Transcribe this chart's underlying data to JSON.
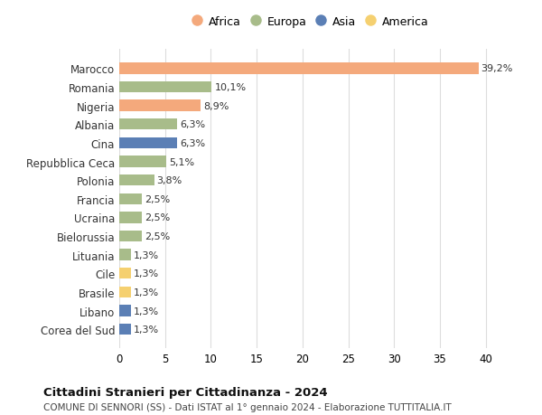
{
  "countries": [
    "Marocco",
    "Romania",
    "Nigeria",
    "Albania",
    "Cina",
    "Repubblica Ceca",
    "Polonia",
    "Francia",
    "Ucraina",
    "Bielorussia",
    "Lituania",
    "Cile",
    "Brasile",
    "Libano",
    "Corea del Sud"
  ],
  "values": [
    39.2,
    10.1,
    8.9,
    6.3,
    6.3,
    5.1,
    3.8,
    2.5,
    2.5,
    2.5,
    1.3,
    1.3,
    1.3,
    1.3,
    1.3
  ],
  "labels": [
    "39,2%",
    "10,1%",
    "8,9%",
    "6,3%",
    "6,3%",
    "5,1%",
    "3,8%",
    "2,5%",
    "2,5%",
    "2,5%",
    "1,3%",
    "1,3%",
    "1,3%",
    "1,3%",
    "1,3%"
  ],
  "continents": [
    "Africa",
    "Europa",
    "Africa",
    "Europa",
    "Asia",
    "Europa",
    "Europa",
    "Europa",
    "Europa",
    "Europa",
    "Europa",
    "America",
    "America",
    "Asia",
    "Asia"
  ],
  "colors": {
    "Africa": "#F4A97C",
    "Europa": "#A8BC8A",
    "Asia": "#5B7FB5",
    "America": "#F5D070"
  },
  "legend_order": [
    "Africa",
    "Europa",
    "Asia",
    "America"
  ],
  "xlim": [
    0,
    42
  ],
  "xticks": [
    0,
    5,
    10,
    15,
    20,
    25,
    30,
    35,
    40
  ],
  "title": "Cittadini Stranieri per Cittadinanza - 2024",
  "subtitle": "COMUNE DI SENNORI (SS) - Dati ISTAT al 1° gennaio 2024 - Elaborazione TUTTITALIA.IT",
  "bg_color": "#ffffff",
  "grid_color": "#dddddd",
  "bar_height": 0.6
}
